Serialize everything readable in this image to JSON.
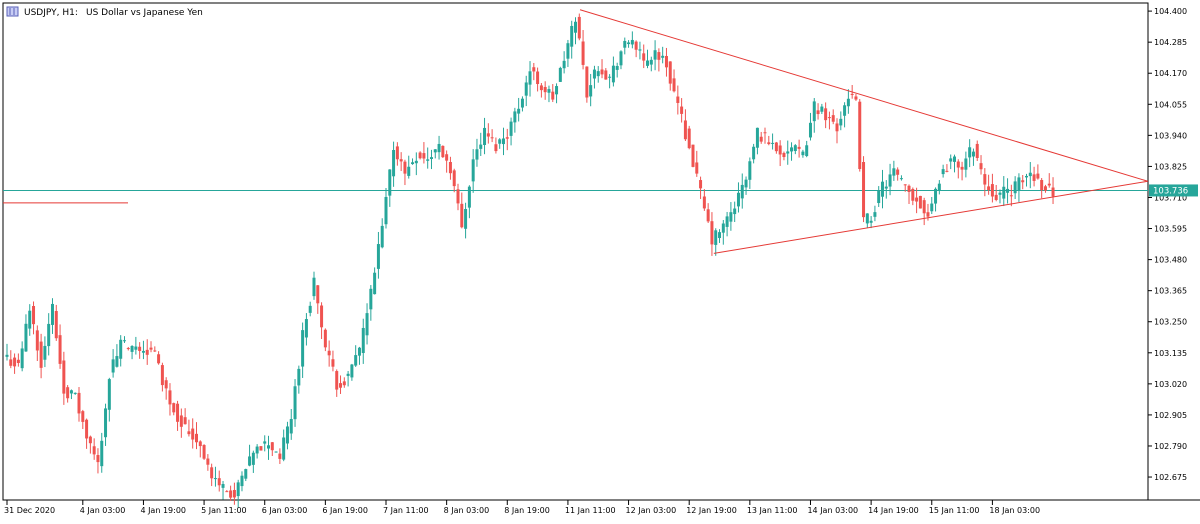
{
  "header": {
    "symbol": "USDJPY, H1:",
    "description": "US Dollar vs Japanese Yen"
  },
  "colors": {
    "bull": "#26a69a",
    "bear": "#ef5350",
    "trendline": "#e53935",
    "price_line": "#26a69a",
    "frame": "#000000",
    "tag_text": "#ffffff"
  },
  "chart_data": {
    "type": "candlestick",
    "symbol": "USDJPY",
    "timeframe": "H1",
    "ylim": [
      102.59,
      104.43
    ],
    "y_ticks": [
      "104.400",
      "104.285",
      "104.170",
      "104.055",
      "103.940",
      "103.825",
      "103.710",
      "103.595",
      "103.480",
      "103.365",
      "103.250",
      "103.135",
      "103.020",
      "102.905",
      "102.790",
      "102.675"
    ],
    "x_ticks": [
      {
        "label": "31 Dec 2020",
        "index": 0
      },
      {
        "label": "4 Jan 03:00",
        "index": 20
      },
      {
        "label": "4 Jan 19:00",
        "index": 36
      },
      {
        "label": "5 Jan 11:00",
        "index": 52
      },
      {
        "label": "6 Jan 03:00",
        "index": 68
      },
      {
        "label": "6 Jan 19:00",
        "index": 84
      },
      {
        "label": "7 Jan 11:00",
        "index": 100
      },
      {
        "label": "8 Jan 03:00",
        "index": 116
      },
      {
        "label": "8 Jan 19:00",
        "index": 132
      },
      {
        "label": "11 Jan 11:00",
        "index": 148
      },
      {
        "label": "12 Jan 03:00",
        "index": 164
      },
      {
        "label": "12 Jan 19:00",
        "index": 180
      },
      {
        "label": "13 Jan 11:00",
        "index": 196
      },
      {
        "label": "14 Jan 03:00",
        "index": 212
      },
      {
        "label": "14 Jan 19:00",
        "index": 228
      },
      {
        "label": "15 Jan 11:00",
        "index": 244
      },
      {
        "label": "18 Jan 03:00",
        "index": 260
      }
    ],
    "current_price": 103.736,
    "current_price_label": "103.736",
    "horizontal_level": {
      "price": 103.69
    },
    "trendlines": [
      {
        "name": "upper",
        "from": {
          "index": 151.2,
          "price": 104.405
        },
        "to": {
          "index": 301,
          "price": 103.77
        }
      },
      {
        "name": "lower",
        "from": {
          "index": 186.5,
          "price": 103.503
        },
        "to": {
          "index": 301,
          "price": 103.77
        }
      }
    ],
    "anchors": [
      [
        0,
        103.12
      ],
      [
        3,
        103.08
      ],
      [
        6,
        103.3
      ],
      [
        9,
        103.1
      ],
      [
        12,
        103.3
      ],
      [
        15,
        103.0
      ],
      [
        18,
        102.97
      ],
      [
        21,
        102.82
      ],
      [
        24,
        102.72
      ],
      [
        27,
        103.05
      ],
      [
        30,
        103.17
      ],
      [
        33,
        103.14
      ],
      [
        36,
        103.15
      ],
      [
        39,
        103.13
      ],
      [
        42,
        102.99
      ],
      [
        45,
        102.9
      ],
      [
        48,
        102.84
      ],
      [
        51,
        102.8
      ],
      [
        54,
        102.67
      ],
      [
        57,
        102.64
      ],
      [
        60,
        102.6
      ],
      [
        63,
        102.7
      ],
      [
        66,
        102.78
      ],
      [
        69,
        102.8
      ],
      [
        72,
        102.75
      ],
      [
        75,
        102.9
      ],
      [
        78,
        103.2
      ],
      [
        81,
        103.4
      ],
      [
        84,
        103.15
      ],
      [
        87,
        103.02
      ],
      [
        90,
        103.04
      ],
      [
        93,
        103.15
      ],
      [
        96,
        103.35
      ],
      [
        99,
        103.6
      ],
      [
        102,
        103.9
      ],
      [
        105,
        103.8
      ],
      [
        108,
        103.87
      ],
      [
        111,
        103.85
      ],
      [
        114,
        103.9
      ],
      [
        117,
        103.82
      ],
      [
        120,
        103.6
      ],
      [
        123,
        103.85
      ],
      [
        126,
        103.95
      ],
      [
        129,
        103.9
      ],
      [
        132,
        103.95
      ],
      [
        135,
        104.05
      ],
      [
        138,
        104.18
      ],
      [
        141,
        104.12
      ],
      [
        144,
        104.08
      ],
      [
        147,
        104.22
      ],
      [
        150,
        104.38
      ],
      [
        153,
        104.1
      ],
      [
        156,
        104.2
      ],
      [
        159,
        104.15
      ],
      [
        162,
        104.25
      ],
      [
        165,
        104.3
      ],
      [
        168,
        104.2
      ],
      [
        171,
        104.25
      ],
      [
        174,
        104.2
      ],
      [
        177,
        104.05
      ],
      [
        180,
        103.9
      ],
      [
        183,
        103.72
      ],
      [
        186,
        103.55
      ],
      [
        189,
        103.6
      ],
      [
        192,
        103.68
      ],
      [
        195,
        103.78
      ],
      [
        198,
        103.95
      ],
      [
        201,
        103.92
      ],
      [
        204,
        103.88
      ],
      [
        207,
        103.89
      ],
      [
        210,
        103.86
      ],
      [
        213,
        104.05
      ],
      [
        216,
        104.02
      ],
      [
        219,
        103.97
      ],
      [
        222,
        104.1
      ],
      [
        224,
        104.05
      ],
      [
        226,
        103.62
      ],
      [
        228,
        103.64
      ],
      [
        231,
        103.75
      ],
      [
        234,
        103.8
      ],
      [
        237,
        103.74
      ],
      [
        240,
        103.7
      ],
      [
        243,
        103.65
      ],
      [
        246,
        103.78
      ],
      [
        249,
        103.85
      ],
      [
        252,
        103.82
      ],
      [
        255,
        103.9
      ],
      [
        258,
        103.76
      ],
      [
        261,
        103.72
      ],
      [
        264,
        103.73
      ],
      [
        267,
        103.76
      ],
      [
        270,
        103.8
      ],
      [
        273,
        103.76
      ],
      [
        276,
        103.73
      ]
    ]
  }
}
